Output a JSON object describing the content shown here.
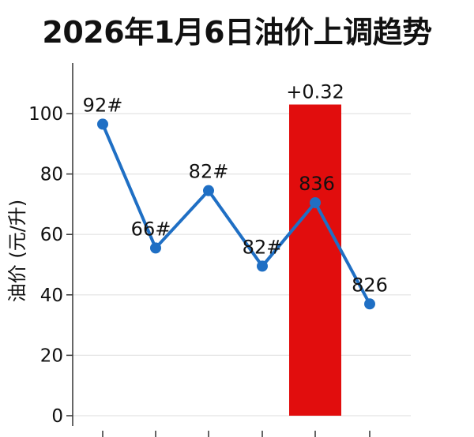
{
  "chart_data": {
    "type": "line",
    "title": "2026年1月6日油价上调趋势",
    "xlabel": "",
    "ylabel": "油价 (元/升)",
    "ylim": [
      0,
      110
    ],
    "yticks": [
      0,
      20,
      40,
      60,
      80,
      100
    ],
    "x": [
      1,
      2,
      3,
      4,
      5,
      6
    ],
    "series": [
      {
        "values": [
          96.5,
          55.5,
          74.5,
          49.5,
          70.5,
          37
        ]
      }
    ],
    "point_labels": [
      "92#",
      "66#",
      "82#",
      "82#",
      "836",
      "826"
    ],
    "highlight": {
      "x": 5,
      "value_top": 103,
      "label": "+0.32"
    },
    "grid": true,
    "legend": "none"
  },
  "colors": {
    "line": "#1f6fc4",
    "highlight_bar": "#e10d0d",
    "grid": "#e3e3e3",
    "axis": "#333333"
  }
}
